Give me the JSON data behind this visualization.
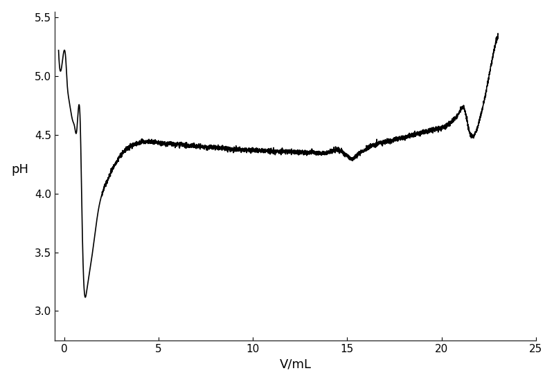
{
  "title": "",
  "xlabel": "V/mL",
  "ylabel": "pH",
  "xlim": [
    -0.5,
    25
  ],
  "ylim": [
    2.75,
    5.55
  ],
  "xticks": [
    0,
    5,
    10,
    15,
    20,
    25
  ],
  "yticks": [
    3.0,
    3.5,
    4.0,
    4.5,
    5.0,
    5.5
  ],
  "line_color": "#000000",
  "line_width": 1.2,
  "background_color": "#ffffff",
  "key_points_x": [
    -0.3,
    0.0,
    0.08,
    0.15,
    0.25,
    0.35,
    0.45,
    0.55,
    0.65,
    0.75,
    0.85,
    0.95,
    1.05,
    1.2,
    1.5,
    1.8,
    2.2,
    2.8,
    3.5,
    4.2,
    5.0,
    5.8,
    6.5,
    7.2,
    8.0,
    8.8,
    9.5,
    10.2,
    11.0,
    11.8,
    12.5,
    13.2,
    14.0,
    14.4,
    14.7,
    14.85,
    15.0,
    15.15,
    15.3,
    15.5,
    15.7,
    15.9,
    16.2,
    16.5,
    17.0,
    17.5,
    18.0,
    18.5,
    19.0,
    19.5,
    20.0,
    20.3,
    20.6,
    20.9,
    21.2,
    21.5,
    21.8,
    22.1,
    22.4,
    22.7,
    23.0
  ],
  "key_points_y": [
    5.22,
    5.22,
    5.15,
    4.95,
    4.8,
    4.7,
    4.62,
    4.57,
    4.52,
    4.72,
    4.6,
    3.75,
    3.2,
    3.18,
    3.5,
    3.85,
    4.08,
    4.28,
    4.4,
    4.44,
    4.43,
    4.42,
    4.41,
    4.4,
    4.39,
    4.38,
    4.37,
    4.37,
    4.36,
    4.36,
    4.35,
    4.35,
    4.35,
    4.37,
    4.36,
    4.34,
    4.32,
    4.3,
    4.3,
    4.32,
    4.35,
    4.37,
    4.4,
    4.42,
    4.44,
    4.46,
    4.48,
    4.5,
    4.52,
    4.54,
    4.56,
    4.58,
    4.62,
    4.68,
    4.72,
    4.52,
    4.52,
    4.68,
    4.9,
    5.15,
    5.35
  ],
  "noise_amplitude": 0.01,
  "noise_seed": 42
}
